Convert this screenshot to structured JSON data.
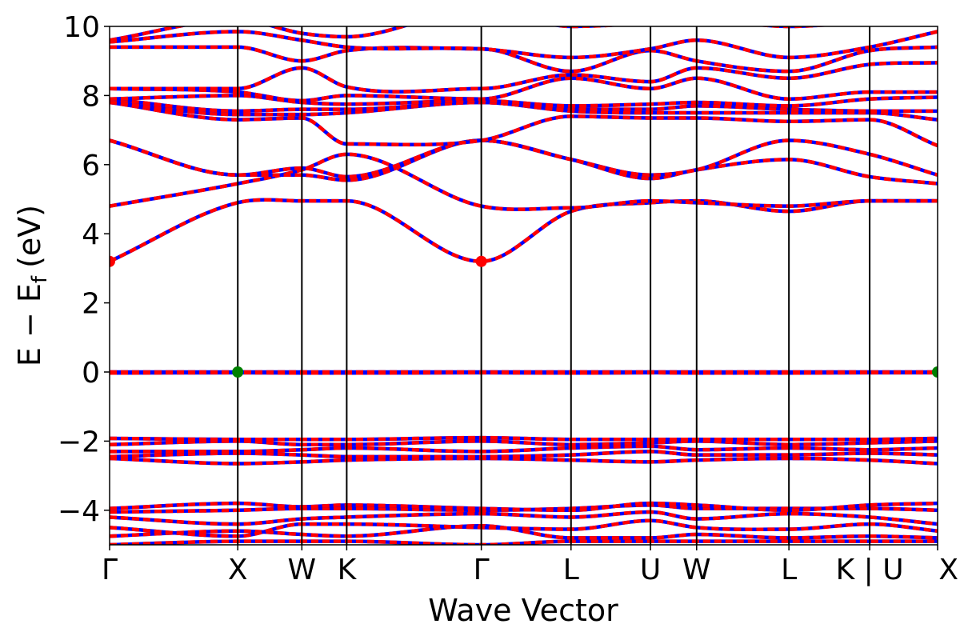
{
  "chart_data": {
    "type": "line",
    "xlabel": "Wave Vector",
    "ylabel_main": "E − E",
    "ylabel_sub": "f",
    "ylabel_unit": "(eV)",
    "ylim": [
      -5,
      10
    ],
    "yticks": [
      -4,
      -2,
      0,
      2,
      4,
      6,
      8,
      10
    ],
    "ytick_labels": [
      "−4",
      "−2",
      "0",
      "2",
      "4",
      "6",
      "8",
      "10"
    ],
    "kpath_labels": [
      "Γ",
      "X",
      "W",
      "K",
      "Γ",
      "L",
      "U",
      "W",
      "L",
      "K | U",
      "X"
    ],
    "kpath_x": [
      0,
      1.0,
      1.5,
      1.85,
      2.9,
      3.6,
      4.22,
      4.58,
      5.3,
      5.93,
      6.46
    ],
    "line_colors": {
      "band_a": "#ff0000",
      "band_b": "#0000ff",
      "vbm": "#008000",
      "cbm": "#ff0000",
      "vline": "#000000"
    },
    "extrema": [
      {
        "type": "cbm",
        "x": 0,
        "y": 3.2
      },
      {
        "type": "cbm",
        "x": 2.9,
        "y": 3.2
      },
      {
        "type": "vbm",
        "x": 1.0,
        "y": 0.0
      },
      {
        "type": "vbm",
        "x": 6.46,
        "y": 0.0
      }
    ],
    "bands": [
      [
        [
          0,
          -5
        ],
        [
          1.0,
          -4.9
        ],
        [
          1.5,
          -4.9
        ],
        [
          1.85,
          -4.9
        ],
        [
          2.9,
          -5
        ],
        [
          3.6,
          -4.9
        ],
        [
          4.22,
          -4.9
        ],
        [
          4.58,
          -4.9
        ],
        [
          5.3,
          -4.9
        ],
        [
          5.93,
          -4.9
        ],
        [
          6.46,
          -4.9
        ]
      ],
      [
        [
          0,
          -4.75
        ],
        [
          1.0,
          -4.6
        ],
        [
          1.5,
          -4.7
        ],
        [
          1.85,
          -4.75
        ],
        [
          2.9,
          -4.45
        ],
        [
          3.6,
          -4.8
        ],
        [
          4.22,
          -4.8
        ],
        [
          4.58,
          -4.7
        ],
        [
          5.3,
          -4.8
        ],
        [
          5.93,
          -4.75
        ],
        [
          6.46,
          -4.8
        ]
      ],
      [
        [
          0,
          -4.5
        ],
        [
          1.0,
          -4.75
        ],
        [
          1.5,
          -4.4
        ],
        [
          1.85,
          -4.4
        ],
        [
          2.9,
          -4.5
        ],
        [
          3.6,
          -4.55
        ],
        [
          4.22,
          -4.3
        ],
        [
          4.58,
          -4.5
        ],
        [
          5.3,
          -4.55
        ],
        [
          5.93,
          -4.4
        ],
        [
          6.46,
          -4.6
        ]
      ],
      [
        [
          0,
          -4.2
        ],
        [
          1.0,
          -4.4
        ],
        [
          1.5,
          -4.25
        ],
        [
          1.85,
          -4.2
        ],
        [
          2.9,
          -4.1
        ],
        [
          3.6,
          -4.2
        ],
        [
          4.22,
          -4.05
        ],
        [
          4.58,
          -4.25
        ],
        [
          5.3,
          -4.1
        ],
        [
          5.93,
          -4.2
        ],
        [
          6.46,
          -4.4
        ]
      ],
      [
        [
          0,
          -4.05
        ],
        [
          1.0,
          -4.0
        ],
        [
          1.5,
          -3.95
        ],
        [
          1.85,
          -3.95
        ],
        [
          2.9,
          -4.0
        ],
        [
          3.6,
          -3.95
        ],
        [
          4.22,
          -3.85
        ],
        [
          4.58,
          -3.95
        ],
        [
          5.3,
          -3.95
        ],
        [
          5.93,
          -3.95
        ],
        [
          6.46,
          -4.0
        ]
      ],
      [
        [
          0,
          -3.95
        ],
        [
          1.0,
          -3.8
        ],
        [
          1.5,
          -3.9
        ],
        [
          1.85,
          -3.85
        ],
        [
          2.9,
          -3.95
        ],
        [
          3.6,
          -4.0
        ],
        [
          4.22,
          -3.8
        ],
        [
          4.58,
          -3.85
        ],
        [
          5.3,
          -4.0
        ],
        [
          5.93,
          -3.85
        ],
        [
          6.46,
          -3.8
        ]
      ],
      [
        [
          0,
          -2.5
        ],
        [
          1.0,
          -2.65
        ],
        [
          1.5,
          -2.6
        ],
        [
          1.85,
          -2.55
        ],
        [
          2.9,
          -2.5
        ],
        [
          3.6,
          -2.55
        ],
        [
          4.22,
          -2.6
        ],
        [
          4.58,
          -2.55
        ],
        [
          5.3,
          -2.5
        ],
        [
          5.93,
          -2.55
        ],
        [
          6.46,
          -2.65
        ]
      ],
      [
        [
          0,
          -2.45
        ],
        [
          1.0,
          -2.35
        ],
        [
          1.5,
          -2.4
        ],
        [
          1.85,
          -2.45
        ],
        [
          2.9,
          -2.45
        ],
        [
          3.6,
          -2.4
        ],
        [
          4.22,
          -2.3
        ],
        [
          4.58,
          -2.4
        ],
        [
          5.3,
          -2.4
        ],
        [
          5.93,
          -2.35
        ],
        [
          6.46,
          -2.4
        ]
      ],
      [
        [
          0,
          -2.3
        ],
        [
          1.0,
          -2.3
        ],
        [
          1.5,
          -2.25
        ],
        [
          1.85,
          -2.2
        ],
        [
          2.9,
          -2.3
        ],
        [
          3.6,
          -2.2
        ],
        [
          4.22,
          -2.15
        ],
        [
          4.58,
          -2.25
        ],
        [
          5.3,
          -2.2
        ],
        [
          5.93,
          -2.25
        ],
        [
          6.46,
          -2.2
        ]
      ],
      [
        [
          0,
          -2.1
        ],
        [
          1.0,
          -2.0
        ],
        [
          1.5,
          -2.1
        ],
        [
          1.85,
          -2.1
        ],
        [
          2.9,
          -2.0
        ],
        [
          3.6,
          -2.1
        ],
        [
          4.22,
          -2.05
        ],
        [
          4.58,
          -2.0
        ],
        [
          5.3,
          -2.1
        ],
        [
          5.93,
          -2.05
        ],
        [
          6.46,
          -2.0
        ]
      ],
      [
        [
          0,
          -1.92
        ],
        [
          1.0,
          -1.95
        ],
        [
          1.5,
          -1.95
        ],
        [
          1.85,
          -1.95
        ],
        [
          2.9,
          -1.9
        ],
        [
          3.6,
          -1.95
        ],
        [
          4.22,
          -1.95
        ],
        [
          4.58,
          -1.95
        ],
        [
          5.3,
          -1.95
        ],
        [
          5.93,
          -1.95
        ],
        [
          6.46,
          -1.92
        ]
      ],
      [
        [
          0,
          0.0
        ],
        [
          1.0,
          0.0
        ],
        [
          1.5,
          0.0
        ],
        [
          1.85,
          0.0
        ],
        [
          2.9,
          0.0
        ],
        [
          3.6,
          0.0
        ],
        [
          4.22,
          0.0
        ],
        [
          4.58,
          0.0
        ],
        [
          5.3,
          0.0
        ],
        [
          5.93,
          0.0
        ],
        [
          6.46,
          0.0
        ]
      ],
      [
        [
          0,
          -0.03
        ],
        [
          1.0,
          -0.02
        ],
        [
          1.5,
          -0.03
        ],
        [
          1.85,
          -0.03
        ],
        [
          2.9,
          -0.02
        ],
        [
          3.6,
          -0.03
        ],
        [
          4.22,
          -0.02
        ],
        [
          4.58,
          -0.03
        ],
        [
          5.3,
          -0.03
        ],
        [
          5.93,
          -0.02
        ],
        [
          6.46,
          -0.02
        ]
      ],
      [
        [
          0,
          3.2
        ],
        [
          1.0,
          4.9
        ],
        [
          1.5,
          4.95
        ],
        [
          1.85,
          4.95
        ],
        [
          2.9,
          3.2
        ],
        [
          3.6,
          4.65
        ],
        [
          4.22,
          4.9
        ],
        [
          4.58,
          4.95
        ],
        [
          5.3,
          4.65
        ],
        [
          5.93,
          4.95
        ],
        [
          6.46,
          4.95
        ]
      ],
      [
        [
          0,
          4.8
        ],
        [
          1.0,
          5.45
        ],
        [
          1.5,
          5.85
        ],
        [
          1.85,
          6.3
        ],
        [
          2.9,
          4.8
        ],
        [
          3.6,
          4.75
        ],
        [
          4.22,
          4.95
        ],
        [
          4.58,
          4.9
        ],
        [
          5.3,
          4.8
        ],
        [
          5.93,
          4.95
        ],
        [
          6.46,
          4.95
        ]
      ],
      [
        [
          0,
          6.7
        ],
        [
          1.0,
          5.7
        ],
        [
          1.5,
          5.7
        ],
        [
          1.85,
          5.55
        ],
        [
          2.9,
          6.7
        ],
        [
          3.6,
          6.15
        ],
        [
          4.22,
          5.6
        ],
        [
          4.58,
          5.85
        ],
        [
          5.3,
          6.15
        ],
        [
          5.93,
          5.65
        ],
        [
          6.46,
          5.45
        ]
      ],
      [
        [
          0,
          6.7
        ],
        [
          1.0,
          5.7
        ],
        [
          1.5,
          5.9
        ],
        [
          1.85,
          5.65
        ],
        [
          2.9,
          6.7
        ],
        [
          3.6,
          6.15
        ],
        [
          4.22,
          5.7
        ],
        [
          4.58,
          5.85
        ],
        [
          5.3,
          6.7
        ],
        [
          5.93,
          6.3
        ],
        [
          6.46,
          5.7
        ]
      ],
      [
        [
          0,
          7.8
        ],
        [
          1.0,
          7.3
        ],
        [
          1.5,
          7.35
        ],
        [
          1.85,
          6.6
        ],
        [
          2.9,
          6.7
        ],
        [
          3.6,
          7.4
        ],
        [
          4.22,
          7.35
        ],
        [
          4.58,
          7.35
        ],
        [
          5.3,
          7.25
        ],
        [
          5.93,
          7.3
        ],
        [
          6.46,
          6.55
        ]
      ],
      [
        [
          0,
          7.8
        ],
        [
          1.0,
          7.45
        ],
        [
          1.5,
          7.45
        ],
        [
          1.85,
          7.5
        ],
        [
          2.9,
          7.8
        ],
        [
          3.6,
          7.55
        ],
        [
          4.22,
          7.5
        ],
        [
          4.58,
          7.5
        ],
        [
          5.3,
          7.5
        ],
        [
          5.93,
          7.5
        ],
        [
          6.46,
          7.3
        ]
      ],
      [
        [
          0,
          7.9
        ],
        [
          1.0,
          7.55
        ],
        [
          1.5,
          7.6
        ],
        [
          1.85,
          7.6
        ],
        [
          2.9,
          7.8
        ],
        [
          3.6,
          7.6
        ],
        [
          4.22,
          7.6
        ],
        [
          4.58,
          7.7
        ],
        [
          5.3,
          7.6
        ],
        [
          5.93,
          7.55
        ],
        [
          6.46,
          7.55
        ]
      ],
      [
        [
          0,
          7.9
        ],
        [
          1.0,
          8.0
        ],
        [
          1.5,
          7.8
        ],
        [
          1.85,
          7.75
        ],
        [
          2.9,
          7.85
        ],
        [
          3.6,
          7.7
        ],
        [
          4.22,
          7.75
        ],
        [
          4.58,
          7.8
        ],
        [
          5.3,
          7.7
        ],
        [
          5.93,
          7.9
        ],
        [
          6.46,
          7.95
        ]
      ],
      [
        [
          0,
          8.2
        ],
        [
          1.0,
          8.1
        ],
        [
          1.5,
          7.85
        ],
        [
          1.85,
          8.0
        ],
        [
          2.9,
          7.9
        ],
        [
          3.6,
          8.5
        ],
        [
          4.22,
          8.2
        ],
        [
          4.58,
          8.5
        ],
        [
          5.3,
          7.9
        ],
        [
          5.93,
          8.1
        ],
        [
          6.46,
          8.1
        ]
      ],
      [
        [
          0,
          8.2
        ],
        [
          1.0,
          8.2
        ],
        [
          1.5,
          8.8
        ],
        [
          1.85,
          8.25
        ],
        [
          2.9,
          8.2
        ],
        [
          3.6,
          8.6
        ],
        [
          4.22,
          8.4
        ],
        [
          4.58,
          8.8
        ],
        [
          5.3,
          8.5
        ],
        [
          5.93,
          8.9
        ],
        [
          6.46,
          8.95
        ]
      ],
      [
        [
          0,
          9.4
        ],
        [
          1.0,
          9.4
        ],
        [
          1.5,
          9.0
        ],
        [
          1.85,
          9.3
        ],
        [
          2.9,
          9.35
        ],
        [
          3.6,
          8.7
        ],
        [
          4.22,
          9.3
        ],
        [
          4.58,
          9.0
        ],
        [
          5.3,
          8.7
        ],
        [
          5.93,
          9.3
        ],
        [
          6.46,
          9.4
        ]
      ],
      [
        [
          0,
          9.55
        ],
        [
          1.0,
          9.85
        ],
        [
          1.5,
          9.6
        ],
        [
          1.85,
          9.4
        ],
        [
          2.9,
          9.35
        ],
        [
          3.6,
          9.1
        ],
        [
          4.22,
          9.35
        ],
        [
          4.58,
          9.6
        ],
        [
          5.3,
          9.1
        ],
        [
          5.93,
          9.4
        ],
        [
          6.46,
          9.85
        ]
      ],
      [
        [
          0,
          9.6
        ],
        [
          1.0,
          10.2
        ],
        [
          1.5,
          9.8
        ],
        [
          1.85,
          9.7
        ],
        [
          2.9,
          10.5
        ],
        [
          3.6,
          10.0
        ],
        [
          4.22,
          10.1
        ],
        [
          4.58,
          10.2
        ],
        [
          5.3,
          10.0
        ],
        [
          5.93,
          10.1
        ],
        [
          6.46,
          10.1
        ]
      ]
    ]
  }
}
